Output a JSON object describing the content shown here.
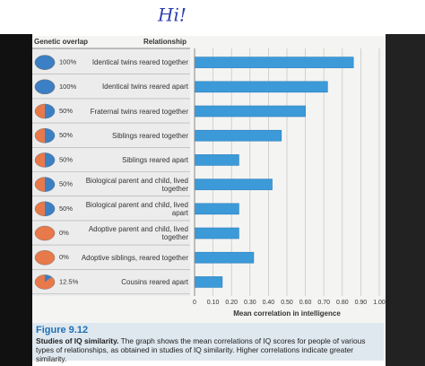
{
  "annotation": "Hi!",
  "chart_data": {
    "type": "bar",
    "orientation": "horizontal",
    "column_headers": [
      "Genetic overlap",
      "Relationship"
    ],
    "categories": [
      "Identical twins reared together",
      "Identical twins reared apart",
      "Fraternal twins reared together",
      "Siblings reared together",
      "Siblings reared apart",
      "Biological parent and child, lived together",
      "Biological parent and child, lived apart",
      "Adoptive parent and child, lived together",
      "Adoptive siblings, reared together",
      "Cousins reared apart"
    ],
    "values": [
      0.86,
      0.72,
      0.6,
      0.47,
      0.24,
      0.42,
      0.24,
      0.24,
      0.32,
      0.15
    ],
    "color": "#3d9ad8",
    "genetic_overlap": {
      "values": [
        100,
        100,
        50,
        50,
        50,
        50,
        50,
        0,
        0,
        12.5
      ],
      "value_labels": [
        "100%",
        "100%",
        "50%",
        "50%",
        "50%",
        "50%",
        "50%",
        "0%",
        "0%",
        "12.5%"
      ],
      "colors": [
        "#3b7fc4",
        "#e8794a"
      ]
    },
    "xlim": [
      0,
      1
    ],
    "xticks": [
      0,
      {
        "value": 0.1,
        "label": "0.10"
      },
      {
        "value": 0.2,
        "label": "0.20"
      },
      {
        "value": 0.3,
        "label": "0.30"
      },
      {
        "value": 0.4,
        "label": "0.40"
      },
      {
        "value": 0.5,
        "label": "0.50"
      },
      {
        "value": 0.6,
        "label": "0.60"
      },
      {
        "value": 0.7,
        "label": "0.70"
      },
      {
        "value": 0.8,
        "label": "0.80"
      },
      {
        "value": 0.9,
        "label": "0.90"
      },
      {
        "value": 1,
        "label": "1.00"
      }
    ],
    "grid": true,
    "xlabel": "Mean correlation in intelligence",
    "figure_label": "Figure 9.12",
    "caption_title": "Studies of IQ similarity.",
    "caption": "The graph shows the mean correlations of IQ scores for people of various types of relationships, as obtained in studies of IQ similarity. Higher correlations indicate greater similarity."
  }
}
